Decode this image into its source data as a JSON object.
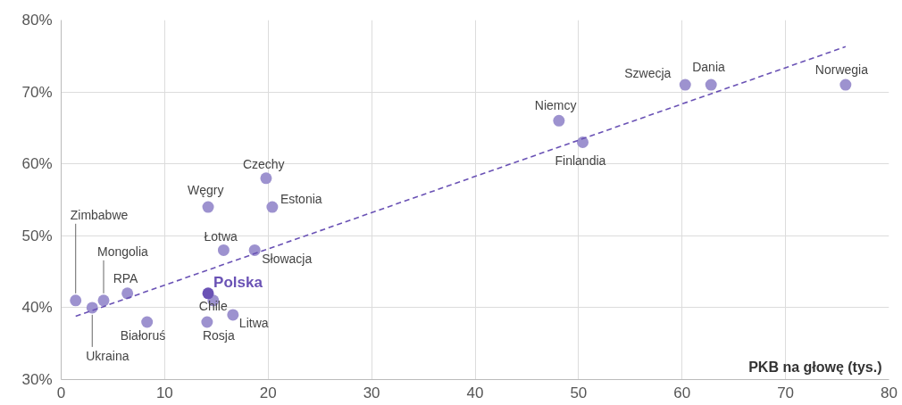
{
  "chart_data": {
    "type": "scatter",
    "xlabel": "PKB na głowę (tys.)",
    "xlim": [
      0,
      80
    ],
    "xticks": [
      0,
      10,
      20,
      30,
      40,
      50,
      60,
      70,
      80
    ],
    "ylim": [
      30,
      80
    ],
    "yticks": [
      {
        "value": 30,
        "label": "30%"
      },
      {
        "value": 40,
        "label": "40%"
      },
      {
        "value": 50,
        "label": "50%"
      },
      {
        "value": 60,
        "label": "60%"
      },
      {
        "value": 70,
        "label": "70%"
      },
      {
        "value": 80,
        "label": "80%"
      }
    ],
    "grid": true,
    "series": [
      {
        "marker": "circle",
        "color": "#9d92cf",
        "x": [
          1.4,
          3.0,
          4.1,
          6.4,
          8.3,
          14.2,
          14.7,
          14.1,
          15.7,
          16.6,
          18.7,
          19.8,
          20.4,
          48.1,
          50.4,
          60.3,
          62.8,
          75.8
        ],
        "values": [
          41,
          40,
          41,
          42,
          38,
          54,
          41,
          38,
          48,
          39,
          48,
          58,
          54,
          66,
          63,
          71,
          71,
          71
        ]
      },
      {
        "name": "Polska",
        "marker": "circle",
        "color": "#6a52b5",
        "x": [
          14.2
        ],
        "values": [
          42
        ]
      },
      {
        "type": "line",
        "line_style": "dashed",
        "marker": "none",
        "color": "#6a52b5",
        "x": [
          1.4,
          75.8
        ],
        "values": [
          38.8,
          76.3
        ]
      }
    ],
    "annotations": [
      {
        "text": "Zimbabwe",
        "x": 1.4,
        "y": 41
      },
      {
        "text": "Ukraina",
        "x": 3.0,
        "y": 40
      },
      {
        "text": "Mongolia",
        "x": 4.1,
        "y": 41
      },
      {
        "text": "RPA",
        "x": 6.4,
        "y": 42
      },
      {
        "text": "Białoruś",
        "x": 8.3,
        "y": 38
      },
      {
        "text": "Węgry",
        "x": 14.2,
        "y": 54
      },
      {
        "text": "Chile",
        "x": 14.7,
        "y": 41
      },
      {
        "text": "Rosja",
        "x": 14.1,
        "y": 38
      },
      {
        "text": "Łotwa",
        "x": 15.7,
        "y": 48
      },
      {
        "text": "Litwa",
        "x": 16.6,
        "y": 39
      },
      {
        "text": "Słowacja",
        "x": 18.7,
        "y": 48
      },
      {
        "text": "Czechy",
        "x": 19.8,
        "y": 58
      },
      {
        "text": "Estonia",
        "x": 20.4,
        "y": 54
      },
      {
        "text": "Niemcy",
        "x": 48.1,
        "y": 66
      },
      {
        "text": "Finlandia",
        "x": 50.4,
        "y": 63
      },
      {
        "text": "Szwecja",
        "x": 60.3,
        "y": 71
      },
      {
        "text": "Dania",
        "x": 62.8,
        "y": 71
      },
      {
        "text": "Norwegia",
        "x": 75.8,
        "y": 71
      }
    ]
  }
}
